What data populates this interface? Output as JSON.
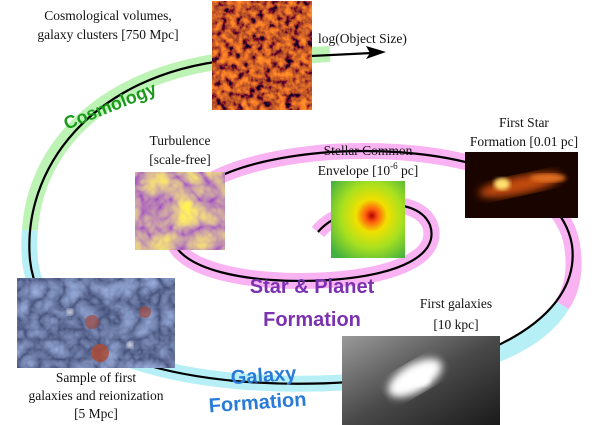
{
  "labels": {
    "cosmological_volumes": [
      "Cosmological volumes,",
      "galaxy clusters [750 Mpc]"
    ],
    "axis": "log(Object Size)",
    "cosmology": "Cosmology",
    "turbulence": [
      "Turbulence",
      "[scale-free]"
    ],
    "stellar_common_envelope": [
      "Stellar Common",
      "Envelope [10",
      "-6",
      " pc]"
    ],
    "first_star_formation": [
      "First Star",
      "Formation [0.01 pc]"
    ],
    "star_planet_formation": [
      "Star & Planet",
      "Formation"
    ],
    "first_galaxies": [
      "First galaxies",
      "[10 kpc]"
    ],
    "galaxy_formation": [
      "Galaxy",
      "Formation"
    ],
    "sample_first_galaxies": [
      "Sample of first",
      "galaxies and reionization",
      "[5 Mpc]"
    ]
  }
}
